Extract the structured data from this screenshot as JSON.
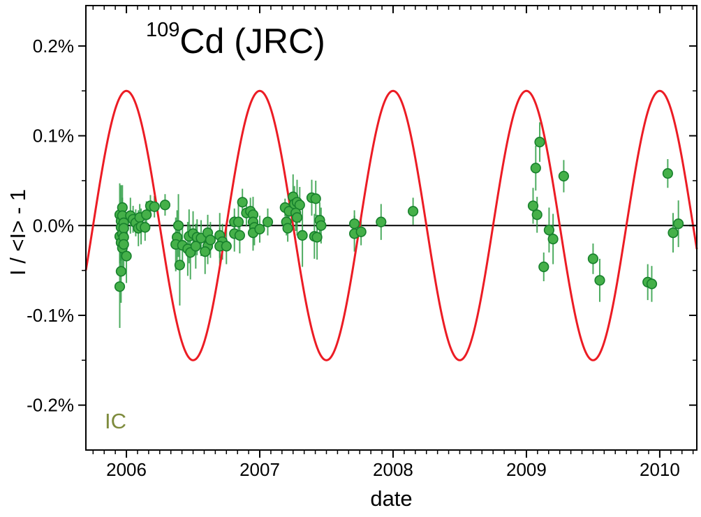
{
  "title": {
    "isotope_mass": "109",
    "text": "Cd (JRC)"
  },
  "x_axis": {
    "label": "date",
    "tick_labels": [
      "2006",
      "2007",
      "2008",
      "2009",
      "2010"
    ],
    "tick_values": [
      2006,
      2007,
      2008,
      2009,
      2010
    ],
    "minor_step_years": 0.08333,
    "range_years": [
      2005.696,
      2010.278
    ]
  },
  "y_axis": {
    "label": "I / <I> - 1",
    "tick_labels": [
      "0.2%",
      "0.1%",
      "0.0%",
      "-0.1%",
      "-0.2%"
    ],
    "tick_values_percent": [
      0.2,
      0.1,
      0.0,
      -0.1,
      -0.2
    ],
    "minor_tick_values_percent": [
      0.15,
      0.05,
      -0.05,
      -0.15
    ],
    "range_percent": [
      -0.25,
      0.245
    ]
  },
  "annotation": {
    "text": "IC",
    "color": "#7e8b3d"
  },
  "colors": {
    "sine_curve": "#ec1c24",
    "marker_fill": "#45b049",
    "marker_edge": "#17802c",
    "error_bar": "#2f9e45",
    "axis": "#000000",
    "zero_line": "#000000",
    "background": "#ffffff"
  },
  "chart_data": {
    "type": "scatter",
    "title": "109Cd (JRC)",
    "xlabel": "date",
    "ylabel": "I / <I> - 1",
    "xlim": [
      2005.696,
      2010.278
    ],
    "ylim": [
      -0.25,
      0.245
    ],
    "grid": false,
    "legend_position": "none",
    "zero_line": true,
    "units": "percent deviation of ionization-chamber current from mean",
    "series": [
      {
        "name": "IC measurements",
        "type": "scatter_with_errorbars",
        "marker": "circle",
        "point_format": [
          "date_decimal_year",
          "value_percent",
          "error_percent"
        ],
        "points": [
          [
            2005.95,
            0.012,
            0.035
          ],
          [
            2005.95,
            -0.012,
            0.03
          ],
          [
            2005.95,
            -0.068,
            0.046
          ],
          [
            2005.96,
            0.005,
            0.04
          ],
          [
            2005.96,
            -0.002,
            0.02
          ],
          [
            2005.96,
            -0.019,
            0.02
          ],
          [
            2005.96,
            -0.051,
            0.035
          ],
          [
            2005.97,
            0.02,
            0.025
          ],
          [
            2005.97,
            0.011,
            0.02
          ],
          [
            2005.97,
            -0.009,
            0.02
          ],
          [
            2005.97,
            -0.025,
            0.03
          ],
          [
            2005.98,
            0.003,
            0.02
          ],
          [
            2005.98,
            -0.003,
            0.025
          ],
          [
            2005.98,
            -0.013,
            0.02
          ],
          [
            2005.98,
            -0.021,
            0.025
          ],
          [
            2006.0,
            -0.034,
            0.03
          ],
          [
            2006.03,
            0.011,
            0.02
          ],
          [
            2006.05,
            0.007,
            0.015
          ],
          [
            2006.07,
            0.003,
            0.015
          ],
          [
            2006.1,
            0.009,
            0.015
          ],
          [
            2006.09,
            -0.003,
            0.02
          ],
          [
            2006.11,
            -0.001,
            0.02
          ],
          [
            2006.14,
            -0.002,
            0.015
          ],
          [
            2006.15,
            0.012,
            0.015
          ],
          [
            2006.18,
            0.022,
            0.012
          ],
          [
            2006.21,
            0.021,
            0.012
          ],
          [
            2006.29,
            0.023,
            0.012
          ],
          [
            2006.39,
            0.0,
            0.035
          ],
          [
            2006.38,
            -0.013,
            0.03
          ],
          [
            2006.37,
            -0.021,
            0.03
          ],
          [
            2006.4,
            -0.044,
            0.045
          ],
          [
            2006.42,
            -0.022,
            0.025
          ],
          [
            2006.47,
            -0.012,
            0.03
          ],
          [
            2006.5,
            -0.009,
            0.025
          ],
          [
            2006.46,
            -0.026,
            0.03
          ],
          [
            2006.48,
            -0.03,
            0.03
          ],
          [
            2006.53,
            -0.013,
            0.02
          ],
          [
            2006.56,
            -0.014,
            0.02
          ],
          [
            2006.52,
            -0.023,
            0.025
          ],
          [
            2006.61,
            -0.023,
            0.02
          ],
          [
            2006.61,
            -0.008,
            0.02
          ],
          [
            2006.63,
            -0.016,
            0.02
          ],
          [
            2006.59,
            -0.029,
            0.025
          ],
          [
            2006.7,
            -0.011,
            0.025
          ],
          [
            2006.72,
            -0.018,
            0.02
          ],
          [
            2006.7,
            -0.023,
            0.02
          ],
          [
            2006.75,
            -0.023,
            0.02
          ],
          [
            2006.81,
            0.004,
            0.015
          ],
          [
            2006.84,
            0.004,
            0.02
          ],
          [
            2006.81,
            -0.009,
            0.02
          ],
          [
            2006.85,
            -0.011,
            0.02
          ],
          [
            2006.87,
            0.026,
            0.015
          ],
          [
            2006.9,
            0.014,
            0.015
          ],
          [
            2006.93,
            0.016,
            0.015
          ],
          [
            2006.95,
            0.012,
            0.02
          ],
          [
            2006.95,
            0.004,
            0.015
          ],
          [
            2006.96,
            -0.002,
            0.02
          ],
          [
            2006.95,
            -0.008,
            0.02
          ],
          [
            2007.0,
            -0.004,
            0.015
          ],
          [
            2007.06,
            0.004,
            0.015
          ],
          [
            2007.19,
            0.02,
            0.01
          ],
          [
            2007.2,
            0.004,
            0.015
          ],
          [
            2007.21,
            -0.003,
            0.015
          ],
          [
            2007.22,
            0.016,
            0.02
          ],
          [
            2007.25,
            0.032,
            0.025
          ],
          [
            2007.26,
            0.024,
            0.02
          ],
          [
            2007.28,
            0.026,
            0.025
          ],
          [
            2007.3,
            0.023,
            0.02
          ],
          [
            2007.27,
            0.014,
            0.02
          ],
          [
            2007.28,
            0.009,
            0.02
          ],
          [
            2007.32,
            -0.011,
            0.035
          ],
          [
            2007.39,
            0.031,
            0.02
          ],
          [
            2007.42,
            0.03,
            0.02
          ],
          [
            2007.41,
            -0.012,
            0.025
          ],
          [
            2007.43,
            -0.013,
            0.025
          ],
          [
            2007.45,
            0.006,
            0.02
          ],
          [
            2007.46,
            0.0,
            0.02
          ],
          [
            2007.71,
            0.002,
            0.015
          ],
          [
            2007.71,
            -0.009,
            0.02
          ],
          [
            2007.76,
            -0.007,
            0.015
          ],
          [
            2007.91,
            0.004,
            0.02
          ],
          [
            2008.15,
            0.016,
            0.015
          ],
          [
            2009.05,
            0.022,
            0.02
          ],
          [
            2009.07,
            0.064,
            0.025
          ],
          [
            2009.1,
            0.093,
            0.022
          ],
          [
            2009.08,
            0.012,
            0.02
          ],
          [
            2009.17,
            -0.005,
            0.025
          ],
          [
            2009.2,
            -0.015,
            0.028
          ],
          [
            2009.13,
            -0.046,
            0.016
          ],
          [
            2009.28,
            0.055,
            0.018
          ],
          [
            2009.5,
            -0.037,
            0.017
          ],
          [
            2009.55,
            -0.061,
            0.024
          ],
          [
            2009.91,
            -0.063,
            0.02
          ],
          [
            2009.94,
            -0.065,
            0.02
          ],
          [
            2010.06,
            0.058,
            0.016
          ],
          [
            2010.1,
            -0.008,
            0.022
          ],
          [
            2010.14,
            0.002,
            0.026
          ]
        ]
      },
      {
        "name": "annual modulation reference curve",
        "type": "line_sine",
        "amplitude_percent": 0.15,
        "period_years": 1.0,
        "peak_at": "start of each year"
      }
    ]
  }
}
